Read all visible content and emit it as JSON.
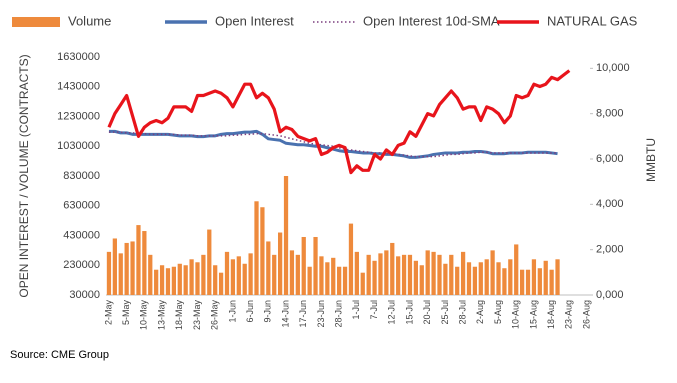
{
  "chart_data": {
    "type": "combo",
    "source": "Source: CME Group",
    "y_label": "OPEN INTEREST / VOLUME (CONTRACTS)",
    "y2_label": "MMBTU",
    "categories": [
      "2-May",
      null,
      null,
      "5-May",
      null,
      null,
      "10-May",
      null,
      null,
      "13-May",
      null,
      null,
      "18-May",
      null,
      null,
      "23-May",
      null,
      null,
      "26-May",
      null,
      null,
      "1-Jun",
      null,
      null,
      "6-Jun",
      null,
      null,
      "9-Jun",
      null,
      null,
      "14-Jun",
      null,
      null,
      "17-Jun",
      null,
      null,
      "23-Jun",
      null,
      null,
      "28-Jun",
      null,
      null,
      "1-Jul",
      null,
      null,
      "7-Jul",
      null,
      null,
      "12-Jul",
      null,
      null,
      "15-Jul",
      null,
      null,
      "20-Jul",
      null,
      null,
      "25-Jul",
      null,
      null,
      "28-Jul",
      null,
      null,
      "2-Aug",
      null,
      null,
      "5-Aug",
      null,
      null,
      "10-Aug",
      null,
      null,
      "15-Aug",
      null,
      null,
      "18-Aug",
      null,
      null,
      "23-Aug",
      null,
      null,
      "26-Aug"
    ],
    "ylim": [
      30000,
      1630000
    ],
    "yticks": [
      30000,
      230000,
      430000,
      630000,
      830000,
      1030000,
      1230000,
      1430000,
      1630000
    ],
    "y2lim": [
      0,
      10500
    ],
    "y2ticks": [
      {
        "value": 0,
        "label": "0,000"
      },
      {
        "value": 2000,
        "label": "2,000"
      },
      {
        "value": 4000,
        "label": "4,000"
      },
      {
        "value": 6000,
        "label": "6,000"
      },
      {
        "value": 8000,
        "label": "8,000"
      },
      {
        "value": 10000,
        "label": "10,000"
      }
    ],
    "grid": false,
    "legend": "top",
    "series": [
      {
        "name": "Volume",
        "type": "bar",
        "color": "#ee8a3c",
        "values": [
          320000,
          410000,
          310000,
          380000,
          390000,
          500000,
          460000,
          300000,
          200000,
          230000,
          210000,
          220000,
          240000,
          230000,
          270000,
          250000,
          300000,
          470000,
          230000,
          180000,
          320000,
          270000,
          290000,
          240000,
          310000,
          660000,
          620000,
          390000,
          300000,
          450000,
          830000,
          330000,
          300000,
          420000,
          220000,
          420000,
          290000,
          250000,
          280000,
          220000,
          220000,
          510000,
          320000,
          180000,
          300000,
          260000,
          310000,
          330000,
          380000,
          290000,
          300000,
          300000,
          260000,
          230000,
          330000,
          320000,
          300000,
          240000,
          300000,
          220000,
          320000,
          250000,
          220000,
          250000,
          270000,
          330000,
          250000,
          210000,
          270000,
          370000,
          200000,
          200000,
          270000,
          210000,
          260000,
          200000,
          270000,
          null,
          null,
          null,
          null,
          null
        ]
      },
      {
        "name": "Open Interest",
        "type": "line",
        "color": "#4a72b0",
        "style": "solid",
        "values": [
          1130000,
          1130000,
          1120000,
          1120000,
          1110000,
          1110000,
          1110000,
          1110000,
          1110000,
          1110000,
          1110000,
          1105000,
          1100000,
          1100000,
          1100000,
          1095000,
          1095000,
          1100000,
          1100000,
          1110000,
          1115000,
          1115000,
          1120000,
          1125000,
          1125000,
          1130000,
          1110000,
          1080000,
          1075000,
          1070000,
          1050000,
          1045000,
          1040000,
          1040000,
          1035000,
          1030000,
          1030000,
          1020000,
          1010000,
          1000000,
          995000,
          995000,
          990000,
          985000,
          985000,
          980000,
          980000,
          975000,
          975000,
          970000,
          965000,
          955000,
          955000,
          960000,
          965000,
          975000,
          980000,
          985000,
          985000,
          985000,
          990000,
          990000,
          995000,
          995000,
          990000,
          980000,
          980000,
          980000,
          985000,
          985000,
          985000,
          990000,
          990000,
          990000,
          990000,
          985000,
          980000,
          null,
          null,
          null,
          null,
          null
        ]
      },
      {
        "name": "Open Interest 10d-SMA",
        "type": "line",
        "color": "#7b3f7f",
        "style": "dotted",
        "values": [
          1125000,
          1125000,
          1125000,
          1120000,
          1120000,
          1115000,
          1115000,
          1110000,
          1110000,
          1110000,
          1110000,
          1110000,
          1105000,
          1105000,
          1105000,
          1100000,
          1100000,
          1100000,
          1100000,
          1100000,
          1100000,
          1105000,
          1105000,
          1110000,
          1110000,
          1115000,
          1115000,
          1110000,
          1105000,
          1100000,
          1090000,
          1080000,
          1070000,
          1060000,
          1050000,
          1045000,
          1040000,
          1035000,
          1030000,
          1020000,
          1010000,
          1005000,
          1000000,
          995000,
          990000,
          985000,
          985000,
          980000,
          980000,
          975000,
          970000,
          965000,
          960000,
          960000,
          960000,
          960000,
          965000,
          970000,
          975000,
          975000,
          980000,
          985000,
          985000,
          990000,
          990000,
          985000,
          985000,
          985000,
          985000,
          985000,
          985000,
          985000,
          985000,
          985000,
          985000,
          985000,
          985000,
          null,
          null,
          null,
          null,
          null
        ]
      },
      {
        "name": "NATURAL GAS",
        "type": "line",
        "axis": "y2",
        "color": "#e8141b",
        "style": "thick",
        "values": [
          7400,
          8000,
          8400,
          8800,
          7900,
          7000,
          7400,
          7600,
          7700,
          7600,
          7800,
          8300,
          8300,
          8300,
          8100,
          8800,
          8800,
          8900,
          9000,
          8900,
          8700,
          8300,
          8800,
          9300,
          9300,
          8700,
          8900,
          8700,
          8200,
          7200,
          7400,
          7300,
          7000,
          6900,
          6800,
          6900,
          6200,
          6300,
          6500,
          6600,
          6500,
          5400,
          5700,
          5500,
          5500,
          6200,
          6000,
          6400,
          6200,
          6600,
          6700,
          7200,
          7000,
          7500,
          8000,
          7900,
          8400,
          8700,
          9000,
          8700,
          8200,
          8300,
          8300,
          7700,
          8300,
          8200,
          8000,
          7600,
          7900,
          8800,
          8700,
          8800,
          9300,
          9200,
          9300,
          9600,
          9500,
          9700,
          9900,
          null,
          null,
          null
        ]
      }
    ]
  }
}
